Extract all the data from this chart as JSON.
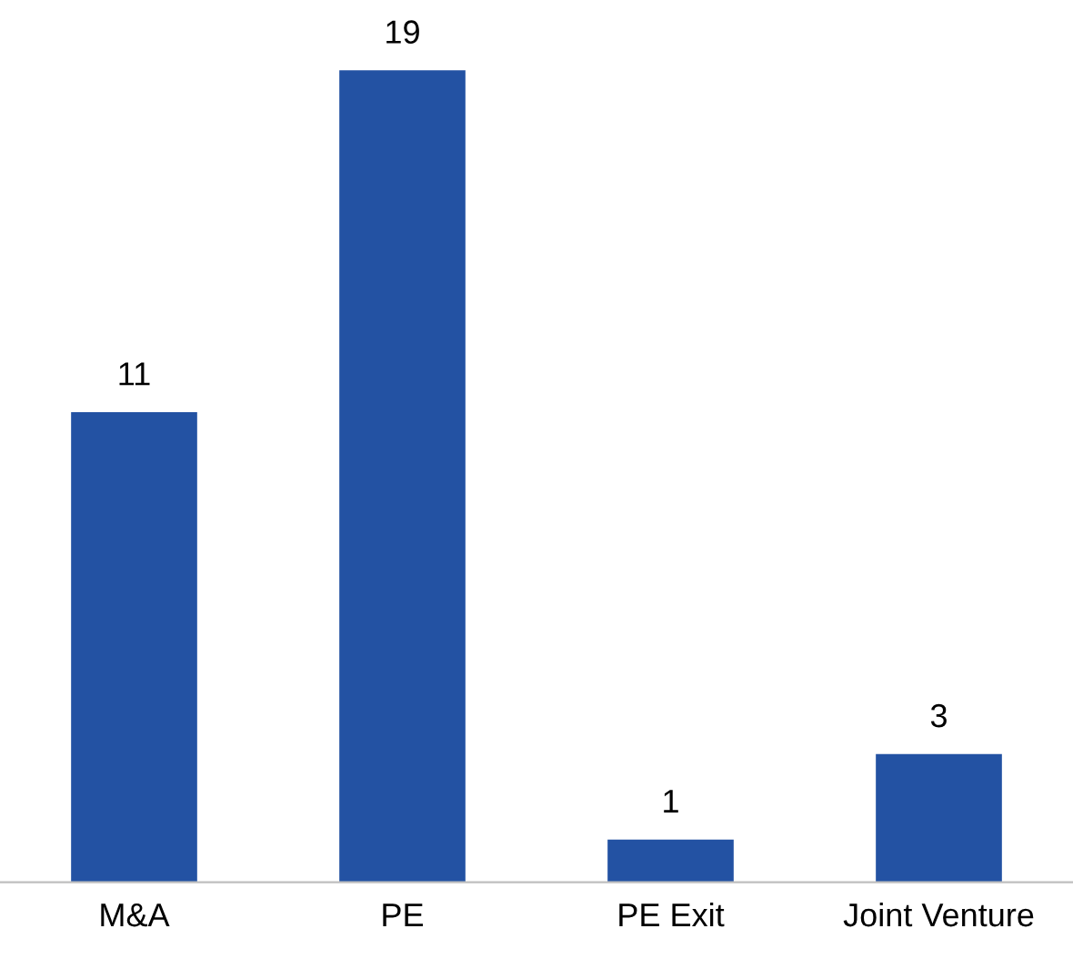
{
  "chart_data": {
    "type": "bar",
    "categories": [
      "M&A",
      "PE",
      "PE Exit",
      "Joint Venture"
    ],
    "values": [
      11,
      19,
      1,
      3
    ],
    "color": "#2352a3",
    "data_labels": true,
    "grid": false,
    "legend": false
  }
}
